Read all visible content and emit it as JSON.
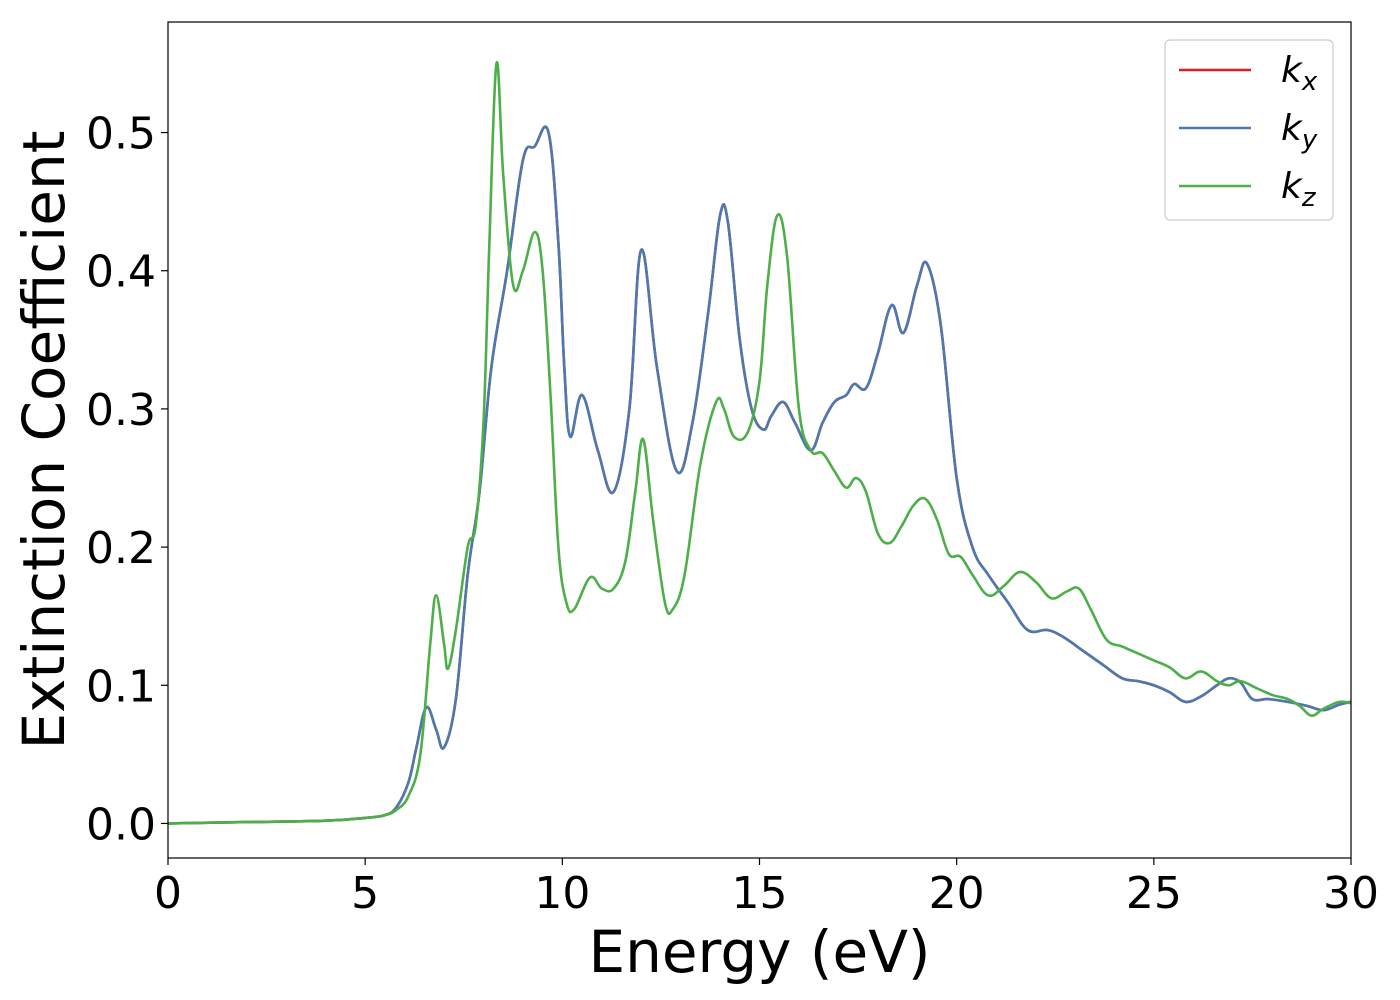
{
  "chart_data": {
    "type": "line",
    "title": "",
    "xlabel": "Energy (eV)",
    "ylabel": "Extinction Coefficient",
    "xlim": [
      0,
      30
    ],
    "ylim": [
      -0.025,
      0.58
    ],
    "xticks": [
      0,
      5,
      10,
      15,
      20,
      25,
      30
    ],
    "xtick_labels": [
      "0",
      "5",
      "10",
      "15",
      "20",
      "25",
      "30"
    ],
    "yticks": [
      0.0,
      0.1,
      0.2,
      0.3,
      0.4,
      0.5
    ],
    "ytick_labels": [
      "0.0",
      "0.1",
      "0.2",
      "0.3",
      "0.4",
      "0.5"
    ],
    "grid": false,
    "legend_position": "top-right",
    "series": [
      {
        "name": "k_x",
        "label_main": "k",
        "label_sub": "x",
        "color": "#e41a1c",
        "x": [
          0,
          2,
          4,
          5,
          5.5,
          5.8,
          6.1,
          6.3,
          6.55,
          6.8,
          7.0,
          7.3,
          7.6,
          7.9,
          8.2,
          8.6,
          9.0,
          9.3,
          9.65,
          9.9,
          10.05,
          10.2,
          10.5,
          10.9,
          11.3,
          11.7,
          12.0,
          12.4,
          12.9,
          13.3,
          13.7,
          14.0,
          14.2,
          14.5,
          14.8,
          15.1,
          15.3,
          15.6,
          15.9,
          16.3,
          16.6,
          16.9,
          17.2,
          17.4,
          17.7,
          18.0,
          18.35,
          18.65,
          19.0,
          19.25,
          19.6,
          20.0,
          20.4,
          20.8,
          21.3,
          21.8,
          22.3,
          22.7,
          23.2,
          23.7,
          24.2,
          24.6,
          25.0,
          25.4,
          25.8,
          26.2,
          26.6,
          26.9,
          27.2,
          27.5,
          27.9,
          28.4,
          28.9,
          29.3,
          29.7,
          30.0
        ],
        "y": [
          0.0,
          0.001,
          0.002,
          0.004,
          0.006,
          0.012,
          0.03,
          0.055,
          0.084,
          0.068,
          0.055,
          0.09,
          0.18,
          0.24,
          0.33,
          0.4,
          0.48,
          0.49,
          0.5,
          0.42,
          0.33,
          0.28,
          0.31,
          0.27,
          0.24,
          0.3,
          0.415,
          0.33,
          0.255,
          0.29,
          0.37,
          0.44,
          0.435,
          0.35,
          0.3,
          0.285,
          0.295,
          0.305,
          0.29,
          0.27,
          0.29,
          0.305,
          0.31,
          0.318,
          0.315,
          0.34,
          0.375,
          0.355,
          0.39,
          0.405,
          0.36,
          0.25,
          0.2,
          0.18,
          0.16,
          0.14,
          0.14,
          0.135,
          0.125,
          0.115,
          0.105,
          0.103,
          0.1,
          0.095,
          0.088,
          0.092,
          0.1,
          0.105,
          0.102,
          0.09,
          0.09,
          0.088,
          0.085,
          0.082,
          0.086,
          0.088
        ]
      },
      {
        "name": "k_y",
        "label_main": "k",
        "label_sub": "y",
        "color": "#4a7ab0",
        "x": [
          0,
          2,
          4,
          5,
          5.5,
          5.8,
          6.1,
          6.3,
          6.55,
          6.8,
          7.0,
          7.3,
          7.6,
          7.9,
          8.2,
          8.6,
          9.0,
          9.3,
          9.65,
          9.9,
          10.05,
          10.2,
          10.5,
          10.9,
          11.3,
          11.7,
          12.0,
          12.4,
          12.9,
          13.3,
          13.7,
          14.0,
          14.2,
          14.5,
          14.8,
          15.1,
          15.3,
          15.6,
          15.9,
          16.3,
          16.6,
          16.9,
          17.2,
          17.4,
          17.7,
          18.0,
          18.35,
          18.65,
          19.0,
          19.25,
          19.6,
          20.0,
          20.4,
          20.8,
          21.3,
          21.8,
          22.3,
          22.7,
          23.2,
          23.7,
          24.2,
          24.6,
          25.0,
          25.4,
          25.8,
          26.2,
          26.6,
          26.9,
          27.2,
          27.5,
          27.9,
          28.4,
          28.9,
          29.3,
          29.7,
          30.0
        ],
        "y": [
          0.0,
          0.001,
          0.002,
          0.004,
          0.006,
          0.012,
          0.03,
          0.055,
          0.084,
          0.068,
          0.055,
          0.09,
          0.18,
          0.24,
          0.33,
          0.4,
          0.48,
          0.49,
          0.5,
          0.42,
          0.33,
          0.28,
          0.31,
          0.27,
          0.24,
          0.3,
          0.415,
          0.33,
          0.255,
          0.29,
          0.37,
          0.44,
          0.435,
          0.35,
          0.3,
          0.285,
          0.295,
          0.305,
          0.29,
          0.27,
          0.29,
          0.305,
          0.31,
          0.318,
          0.315,
          0.34,
          0.375,
          0.355,
          0.39,
          0.405,
          0.36,
          0.25,
          0.2,
          0.18,
          0.16,
          0.14,
          0.14,
          0.135,
          0.125,
          0.115,
          0.105,
          0.103,
          0.1,
          0.095,
          0.088,
          0.092,
          0.1,
          0.105,
          0.102,
          0.09,
          0.09,
          0.088,
          0.085,
          0.082,
          0.086,
          0.088
        ]
      },
      {
        "name": "k_z",
        "label_main": "k",
        "label_sub": "z",
        "color": "#4daf4a",
        "x": [
          0,
          2,
          4,
          5,
          5.5,
          5.8,
          6.1,
          6.4,
          6.65,
          6.8,
          7.0,
          7.1,
          7.3,
          7.6,
          7.8,
          8.0,
          8.15,
          8.33,
          8.5,
          8.75,
          9.0,
          9.3,
          9.5,
          9.7,
          9.9,
          10.1,
          10.3,
          10.7,
          11.0,
          11.3,
          11.6,
          11.85,
          12.05,
          12.3,
          12.6,
          12.8,
          13.1,
          13.5,
          13.9,
          14.1,
          14.35,
          14.7,
          15.0,
          15.2,
          15.45,
          15.7,
          16.0,
          16.3,
          16.6,
          16.9,
          17.2,
          17.45,
          17.7,
          18.0,
          18.3,
          18.6,
          18.9,
          19.2,
          19.5,
          19.8,
          20.1,
          20.4,
          20.8,
          21.2,
          21.6,
          22.0,
          22.4,
          22.8,
          23.1,
          23.4,
          23.8,
          24.2,
          24.6,
          25.0,
          25.4,
          25.8,
          26.2,
          26.6,
          26.9,
          27.2,
          27.6,
          28.0,
          28.4,
          28.7,
          29.0,
          29.3,
          29.7,
          30.0
        ],
        "y": [
          0.0,
          0.001,
          0.002,
          0.004,
          0.006,
          0.01,
          0.02,
          0.05,
          0.13,
          0.165,
          0.13,
          0.112,
          0.14,
          0.2,
          0.215,
          0.29,
          0.42,
          0.55,
          0.47,
          0.39,
          0.4,
          0.428,
          0.4,
          0.31,
          0.2,
          0.16,
          0.155,
          0.178,
          0.17,
          0.17,
          0.19,
          0.24,
          0.278,
          0.22,
          0.16,
          0.155,
          0.18,
          0.26,
          0.305,
          0.3,
          0.28,
          0.283,
          0.32,
          0.39,
          0.44,
          0.41,
          0.3,
          0.27,
          0.268,
          0.255,
          0.243,
          0.25,
          0.24,
          0.21,
          0.203,
          0.215,
          0.23,
          0.235,
          0.22,
          0.195,
          0.193,
          0.18,
          0.165,
          0.172,
          0.182,
          0.175,
          0.163,
          0.168,
          0.17,
          0.155,
          0.133,
          0.128,
          0.123,
          0.118,
          0.113,
          0.105,
          0.11,
          0.103,
          0.1,
          0.103,
          0.098,
          0.093,
          0.09,
          0.085,
          0.078,
          0.083,
          0.088,
          0.087
        ]
      }
    ]
  }
}
